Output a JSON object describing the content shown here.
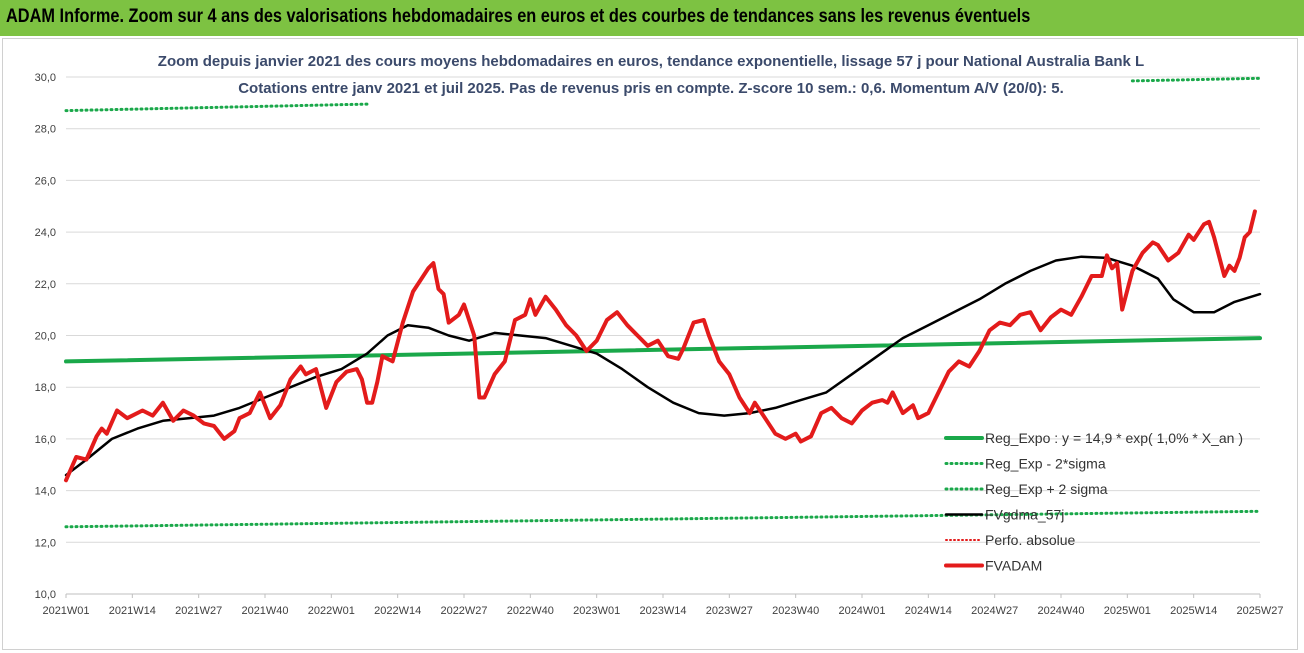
{
  "header": {
    "banner_text": "ADAM Informe. Zoom sur 4 ans des valorisations hebdomadaires en euros et des courbes de tendances sans les revenus éventuels"
  },
  "colors": {
    "banner_bg": "#7dc242",
    "reg_expo": "#1aa84a",
    "fvgdma": "#000000",
    "fvadam": "#e31b1b",
    "perfo": "#e31b1b"
  },
  "chart_data": {
    "type": "line",
    "title_lines": [
      "Zoom depuis janvier 2021 des cours moyens hebdomadaires en euros, tendance exponentielle, lissage 57 j pour National Australia Bank L",
      "Cotations entre janv 2021 et juil 2025. Pas de revenus pris en compte. Z-score 10 sem.: 0,6. Momentum A/V (20/0): 5."
    ],
    "ylim": [
      10,
      30
    ],
    "y_ticks": [
      "10,0",
      "12,0",
      "14,0",
      "16,0",
      "18,0",
      "20,0",
      "22,0",
      "24,0",
      "26,0",
      "28,0",
      "30,0"
    ],
    "x_range": [
      1,
      235
    ],
    "x_ticks": [
      {
        "x": 1,
        "label": "2021W01"
      },
      {
        "x": 14,
        "label": "2021W14"
      },
      {
        "x": 27,
        "label": "2021W27"
      },
      {
        "x": 40,
        "label": "2021W40"
      },
      {
        "x": 53,
        "label": "2022W01"
      },
      {
        "x": 66,
        "label": "2022W14"
      },
      {
        "x": 79,
        "label": "2022W27"
      },
      {
        "x": 92,
        "label": "2022W40"
      },
      {
        "x": 105,
        "label": "2023W01"
      },
      {
        "x": 118,
        "label": "2023W14"
      },
      {
        "x": 131,
        "label": "2023W27"
      },
      {
        "x": 144,
        "label": "2023W40"
      },
      {
        "x": 157,
        "label": "2024W01"
      },
      {
        "x": 170,
        "label": "2024W14"
      },
      {
        "x": 183,
        "label": "2024W27"
      },
      {
        "x": 196,
        "label": "2024W40"
      },
      {
        "x": 209,
        "label": "2025W01"
      },
      {
        "x": 222,
        "label": "2025W14"
      },
      {
        "x": 235,
        "label": "2025W27"
      }
    ],
    "grid": "horizontal",
    "legend_position": "bottom-right",
    "legend": [
      "Reg_Expo : y = 14,9 * exp( 1,0% *  X_an )",
      "Reg_Exp - 2*sigma",
      "Reg_Exp + 2 sigma",
      "FVgdma_57j",
      "Perfo. absolue",
      "FVADAM"
    ],
    "series": [
      {
        "name": "Reg_Expo : y = 14,9 * exp( 1,0% *  X_an )",
        "style": "solid-thick",
        "points": [
          [
            1,
            19.0
          ],
          [
            235,
            19.9
          ]
        ]
      },
      {
        "name": "Reg_Exp - 2*sigma",
        "style": "dotted",
        "points": [
          [
            1,
            12.6
          ],
          [
            235,
            13.2
          ]
        ]
      },
      {
        "name": "Reg_Exp + 2 sigma",
        "style": "dotted",
        "segments": [
          [
            [
              1,
              28.7
            ],
            [
              60,
              28.95
            ]
          ],
          [
            [
              210,
              29.85
            ],
            [
              235,
              29.95
            ]
          ]
        ]
      },
      {
        "name": "FVgdma_57j",
        "style": "solid",
        "points": [
          [
            1,
            14.6
          ],
          [
            5,
            15.2
          ],
          [
            10,
            16.0
          ],
          [
            15,
            16.4
          ],
          [
            20,
            16.7
          ],
          [
            25,
            16.8
          ],
          [
            30,
            16.9
          ],
          [
            35,
            17.2
          ],
          [
            40,
            17.6
          ],
          [
            45,
            18.0
          ],
          [
            50,
            18.4
          ],
          [
            55,
            18.7
          ],
          [
            60,
            19.3
          ],
          [
            64,
            20.0
          ],
          [
            68,
            20.4
          ],
          [
            72,
            20.3
          ],
          [
            76,
            20.0
          ],
          [
            80,
            19.8
          ],
          [
            85,
            20.1
          ],
          [
            90,
            20.0
          ],
          [
            95,
            19.9
          ],
          [
            100,
            19.6
          ],
          [
            105,
            19.3
          ],
          [
            110,
            18.7
          ],
          [
            115,
            18.0
          ],
          [
            120,
            17.4
          ],
          [
            125,
            17.0
          ],
          [
            130,
            16.9
          ],
          [
            135,
            17.0
          ],
          [
            140,
            17.2
          ],
          [
            145,
            17.5
          ],
          [
            150,
            17.8
          ],
          [
            155,
            18.5
          ],
          [
            160,
            19.2
          ],
          [
            165,
            19.9
          ],
          [
            170,
            20.4
          ],
          [
            175,
            20.9
          ],
          [
            180,
            21.4
          ],
          [
            185,
            22.0
          ],
          [
            190,
            22.5
          ],
          [
            195,
            22.9
          ],
          [
            200,
            23.05
          ],
          [
            205,
            23.0
          ],
          [
            210,
            22.7
          ],
          [
            215,
            22.2
          ],
          [
            218,
            21.4
          ],
          [
            222,
            20.9
          ],
          [
            226,
            20.9
          ],
          [
            230,
            21.3
          ],
          [
            235,
            21.6
          ]
        ]
      },
      {
        "name": "FVADAM",
        "style": "solid-thick",
        "points": [
          [
            1,
            14.4
          ],
          [
            3,
            15.3
          ],
          [
            5,
            15.2
          ],
          [
            7,
            16.1
          ],
          [
            8,
            16.4
          ],
          [
            9,
            16.2
          ],
          [
            11,
            17.1
          ],
          [
            13,
            16.8
          ],
          [
            16,
            17.1
          ],
          [
            18,
            16.9
          ],
          [
            20,
            17.4
          ],
          [
            22,
            16.7
          ],
          [
            24,
            17.1
          ],
          [
            26,
            16.9
          ],
          [
            28,
            16.6
          ],
          [
            30,
            16.5
          ],
          [
            32,
            16.0
          ],
          [
            34,
            16.3
          ],
          [
            35,
            16.8
          ],
          [
            37,
            17.0
          ],
          [
            39,
            17.8
          ],
          [
            41,
            16.8
          ],
          [
            43,
            17.3
          ],
          [
            45,
            18.3
          ],
          [
            47,
            18.8
          ],
          [
            48,
            18.5
          ],
          [
            50,
            18.7
          ],
          [
            52,
            17.2
          ],
          [
            54,
            18.2
          ],
          [
            56,
            18.6
          ],
          [
            58,
            18.7
          ],
          [
            59,
            18.3
          ],
          [
            60,
            17.4
          ],
          [
            61,
            17.4
          ],
          [
            62,
            18.2
          ],
          [
            63,
            19.2
          ],
          [
            65,
            19.0
          ],
          [
            67,
            20.5
          ],
          [
            69,
            21.7
          ],
          [
            72,
            22.6
          ],
          [
            73,
            22.8
          ],
          [
            74,
            21.8
          ],
          [
            75,
            21.6
          ],
          [
            76,
            20.5
          ],
          [
            78,
            20.8
          ],
          [
            79,
            21.2
          ],
          [
            81,
            20.0
          ],
          [
            82,
            17.6
          ],
          [
            83,
            17.6
          ],
          [
            85,
            18.5
          ],
          [
            87,
            19.0
          ],
          [
            89,
            20.6
          ],
          [
            91,
            20.8
          ],
          [
            92,
            21.4
          ],
          [
            93,
            20.8
          ],
          [
            95,
            21.5
          ],
          [
            97,
            21.0
          ],
          [
            99,
            20.4
          ],
          [
            101,
            20.0
          ],
          [
            103,
            19.4
          ],
          [
            105,
            19.8
          ],
          [
            107,
            20.6
          ],
          [
            109,
            20.9
          ],
          [
            111,
            20.4
          ],
          [
            113,
            20.0
          ],
          [
            115,
            19.6
          ],
          [
            117,
            19.8
          ],
          [
            119,
            19.2
          ],
          [
            121,
            19.1
          ],
          [
            122,
            19.5
          ],
          [
            124,
            20.5
          ],
          [
            126,
            20.6
          ],
          [
            127,
            20.0
          ],
          [
            129,
            19.0
          ],
          [
            131,
            18.5
          ],
          [
            133,
            17.6
          ],
          [
            135,
            17.0
          ],
          [
            136,
            17.4
          ],
          [
            138,
            16.8
          ],
          [
            140,
            16.2
          ],
          [
            142,
            16.0
          ],
          [
            144,
            16.2
          ],
          [
            145,
            15.9
          ],
          [
            147,
            16.1
          ],
          [
            149,
            17.0
          ],
          [
            151,
            17.2
          ],
          [
            153,
            16.8
          ],
          [
            155,
            16.6
          ],
          [
            157,
            17.1
          ],
          [
            159,
            17.4
          ],
          [
            161,
            17.5
          ],
          [
            162,
            17.4
          ],
          [
            163,
            17.8
          ],
          [
            165,
            17.0
          ],
          [
            167,
            17.3
          ],
          [
            168,
            16.8
          ],
          [
            170,
            17.0
          ],
          [
            172,
            17.8
          ],
          [
            174,
            18.6
          ],
          [
            176,
            19.0
          ],
          [
            178,
            18.8
          ],
          [
            180,
            19.4
          ],
          [
            182,
            20.2
          ],
          [
            184,
            20.5
          ],
          [
            186,
            20.4
          ],
          [
            188,
            20.8
          ],
          [
            190,
            20.9
          ],
          [
            192,
            20.2
          ],
          [
            194,
            20.7
          ],
          [
            196,
            21.0
          ],
          [
            198,
            20.8
          ],
          [
            200,
            21.5
          ],
          [
            202,
            22.3
          ],
          [
            204,
            22.3
          ],
          [
            205,
            23.1
          ],
          [
            206,
            22.6
          ],
          [
            207,
            22.8
          ],
          [
            208,
            21.0
          ],
          [
            210,
            22.5
          ],
          [
            212,
            23.2
          ],
          [
            214,
            23.6
          ],
          [
            215,
            23.5
          ],
          [
            217,
            22.9
          ],
          [
            219,
            23.2
          ],
          [
            221,
            23.9
          ],
          [
            222,
            23.7
          ],
          [
            224,
            24.3
          ],
          [
            225,
            24.4
          ],
          [
            226,
            23.8
          ],
          [
            228,
            22.3
          ],
          [
            229,
            22.7
          ],
          [
            230,
            22.5
          ],
          [
            231,
            23.0
          ],
          [
            232,
            23.8
          ],
          [
            233,
            24.0
          ],
          [
            234,
            24.8
          ]
        ]
      }
    ]
  }
}
